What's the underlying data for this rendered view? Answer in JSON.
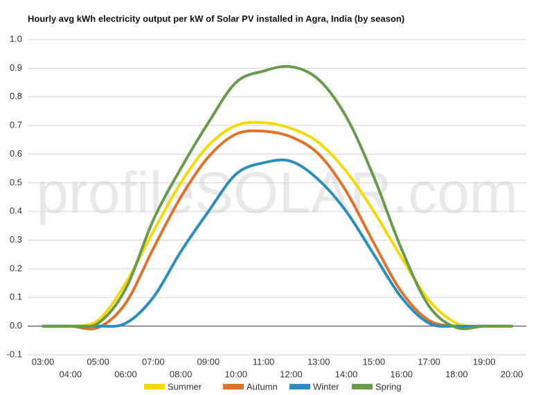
{
  "chart_data": {
    "type": "line",
    "title": "Hourly avg kWh electricity output per kW of Solar PV installed in Agra, India (by season)",
    "watermark": "profileSOLAR.com",
    "categories": [
      "03:00",
      "04:00",
      "05:00",
      "06:00",
      "07:00",
      "08:00",
      "09:00",
      "10:00",
      "11:00",
      "12:00",
      "13:00",
      "14:00",
      "15:00",
      "16:00",
      "17:00",
      "18:00",
      "19:00",
      "20:00"
    ],
    "series": [
      {
        "name": "Summer",
        "color": "#f5d90a",
        "values": [
          0,
          0,
          0.02,
          0.15,
          0.33,
          0.5,
          0.63,
          0.7,
          0.71,
          0.69,
          0.64,
          0.54,
          0.4,
          0.24,
          0.09,
          0.01,
          0,
          0
        ]
      },
      {
        "name": "Autumn",
        "color": "#e0722a",
        "values": [
          0,
          0,
          -0.005,
          0.08,
          0.27,
          0.45,
          0.59,
          0.67,
          0.68,
          0.66,
          0.6,
          0.47,
          0.29,
          0.12,
          0.02,
          0,
          0,
          0
        ]
      },
      {
        "name": "Winter",
        "color": "#2a8fbd",
        "values": [
          0,
          0,
          0,
          0.01,
          0.1,
          0.26,
          0.4,
          0.53,
          0.57,
          0.575,
          0.51,
          0.4,
          0.25,
          0.1,
          0.01,
          0,
          0,
          0
        ]
      },
      {
        "name": "Spring",
        "color": "#6a9a4c",
        "values": [
          0,
          0,
          0.01,
          0.13,
          0.37,
          0.55,
          0.71,
          0.85,
          0.89,
          0.905,
          0.86,
          0.73,
          0.52,
          0.27,
          0.07,
          -0.005,
          0,
          0
        ]
      }
    ],
    "ylim": [
      -0.1,
      1.0
    ],
    "yticks": [
      -0.1,
      {
        "value": 0,
        "label": "0.0"
      },
      0.1,
      0.2,
      0.3,
      0.4,
      0.5,
      0.6,
      0.7,
      0.8,
      0.9,
      {
        "value": 1,
        "label": "1.0"
      }
    ],
    "grid": true
  }
}
